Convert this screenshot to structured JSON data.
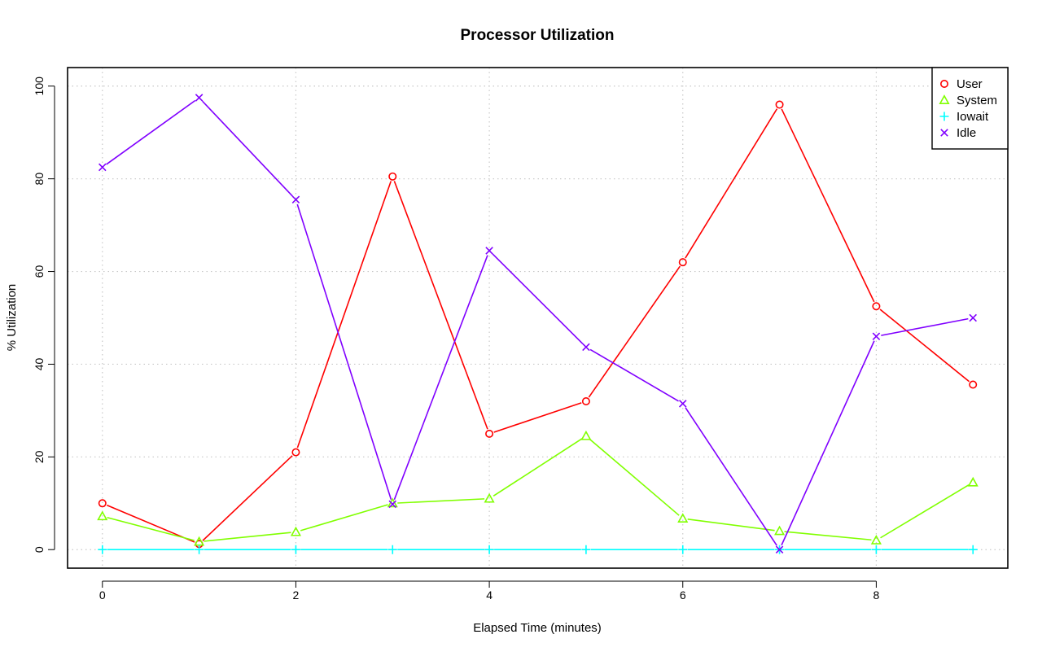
{
  "chart_data": {
    "type": "line",
    "title": "Processor Utilization",
    "xlabel": "Elapsed Time (minutes)",
    "ylabel": "% Utilization",
    "x": [
      0,
      1,
      2,
      3,
      4,
      5,
      6,
      7,
      8,
      9
    ],
    "xlim": [
      -0.36,
      9.36
    ],
    "ylim": [
      -4,
      104
    ],
    "xticks": [
      0,
      2,
      4,
      6,
      8
    ],
    "yticks": [
      0,
      20,
      40,
      60,
      80,
      100
    ],
    "grid": true,
    "legend_position": "top-right",
    "series": [
      {
        "name": "User",
        "color": "#ff0000",
        "marker": "circle",
        "values": [
          10,
          1.2,
          21,
          80.5,
          25,
          32,
          62,
          96,
          52.5,
          35.6
        ]
      },
      {
        "name": "System",
        "color": "#80ff00",
        "marker": "triangle",
        "values": [
          7.2,
          1.7,
          3.8,
          10,
          11,
          24.5,
          6.7,
          4,
          2,
          14.5
        ]
      },
      {
        "name": "Iowait",
        "color": "#00ffff",
        "marker": "plus",
        "values": [
          0,
          0,
          0,
          0,
          0,
          0,
          0,
          0,
          0,
          0
        ]
      },
      {
        "name": "Idle",
        "color": "#8000ff",
        "marker": "cross",
        "values": [
          82.5,
          97.5,
          75.5,
          9.8,
          64.5,
          43.7,
          31.5,
          0,
          46,
          50
        ]
      }
    ]
  }
}
